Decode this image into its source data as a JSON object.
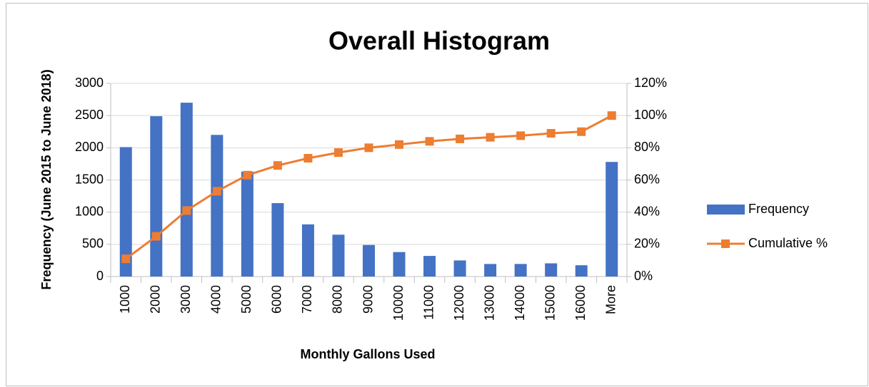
{
  "chart_data": {
    "type": "bar",
    "title": "Overall Histogram",
    "x_label": "Monthly Gallons Used",
    "y_label": "Frequency (June 2015 to June 2018)",
    "categories": [
      "1000",
      "2000",
      "3000",
      "4000",
      "5000",
      "6000",
      "7000",
      "8000",
      "9000",
      "10000",
      "11000",
      "12000",
      "13000",
      "14000",
      "15000",
      "16000",
      "More"
    ],
    "series": [
      {
        "name": "Frequency",
        "type": "bar",
        "color": "#4472c4",
        "values": [
          2010,
          2490,
          2700,
          2200,
          1630,
          1140,
          810,
          650,
          490,
          380,
          320,
          250,
          195,
          195,
          205,
          175,
          1780
        ]
      },
      {
        "name": "Cumulative %",
        "type": "line",
        "axis": "y2",
        "color": "#ed7d31",
        "marker": "square",
        "values": [
          11,
          25,
          41,
          53,
          63,
          69,
          73.5,
          77,
          80,
          82,
          84,
          85.5,
          86.5,
          87.5,
          89,
          90,
          100
        ]
      }
    ],
    "ylim": [
      0,
      3000
    ],
    "yticks": [
      0,
      500,
      1000,
      1500,
      2000,
      2500,
      3000
    ],
    "y2lim": [
      0,
      120
    ],
    "y2ticks": [
      {
        "value": 0,
        "label": "0%"
      },
      {
        "value": 20,
        "label": "20%"
      },
      {
        "value": 40,
        "label": "40%"
      },
      {
        "value": 60,
        "label": "60%"
      },
      {
        "value": 80,
        "label": "80%"
      },
      {
        "value": 100,
        "label": "100%"
      },
      {
        "value": 120,
        "label": "120%"
      }
    ],
    "grid": true,
    "legend": "right"
  }
}
